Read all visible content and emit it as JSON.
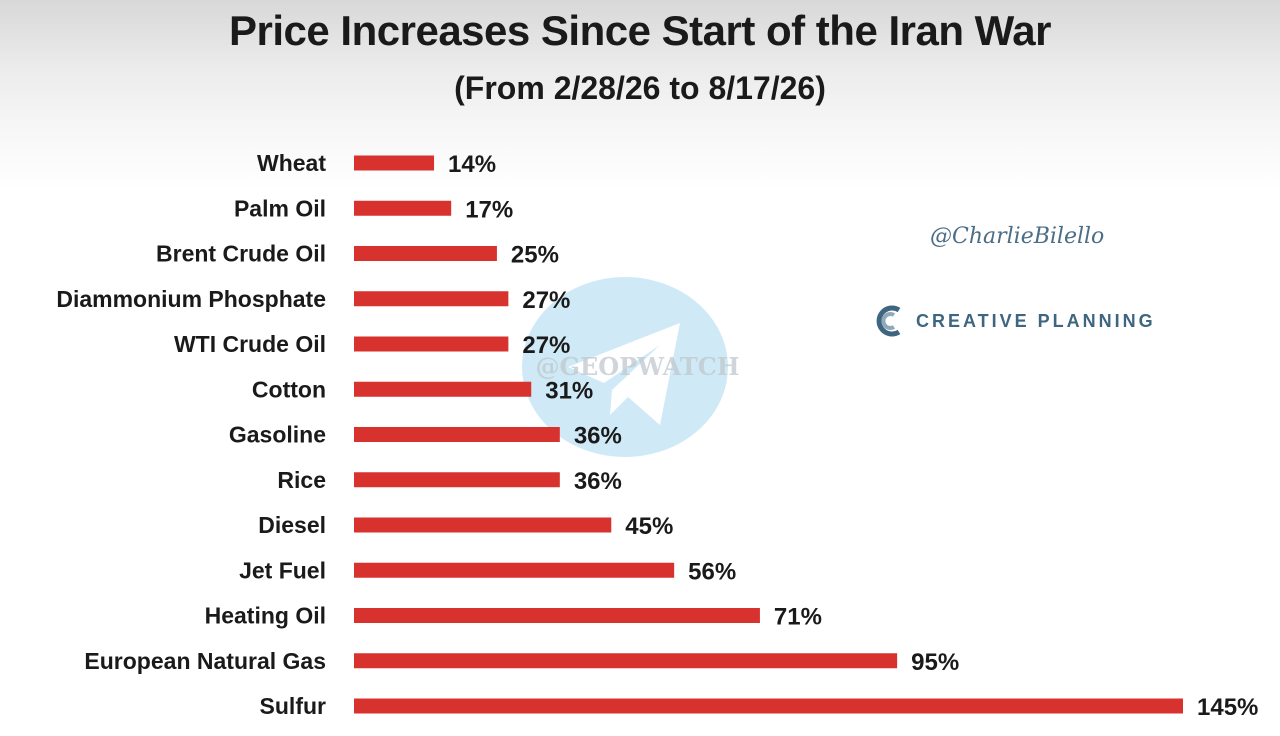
{
  "chart_data": {
    "type": "bar",
    "orientation": "horizontal",
    "title": "Price Increases Since Start of the Iran War",
    "subtitle": "(From 2/28/26 to 8/17/26)",
    "categories": [
      "Wheat",
      "Palm Oil",
      "Brent Crude Oil",
      "Diammonium Phosphate",
      "WTI Crude Oil",
      "Cotton",
      "Gasoline",
      "Rice",
      "Diesel",
      "Jet Fuel",
      "Heating Oil",
      "European Natural Gas",
      "Sulfur"
    ],
    "values": [
      14,
      17,
      25,
      27,
      27,
      31,
      36,
      36,
      45,
      56,
      71,
      95,
      145
    ],
    "value_labels": [
      "14%",
      "17%",
      "25%",
      "27%",
      "27%",
      "31%",
      "36%",
      "36%",
      "45%",
      "56%",
      "71%",
      "95%",
      "145%"
    ],
    "unit": "%",
    "xlim": [
      0,
      145
    ],
    "bar_color": "#d8322f",
    "grid": false,
    "legend": "none"
  },
  "credits": {
    "handle": "@CharlieBilello",
    "brand": "CREATIVE PLANNING",
    "watermark": "@GEOPWATCH",
    "accent_color": "#3f6680"
  },
  "icons": {
    "brand_logo": "creative-planning-logo-icon",
    "watermark_logo": "telegram-icon"
  }
}
